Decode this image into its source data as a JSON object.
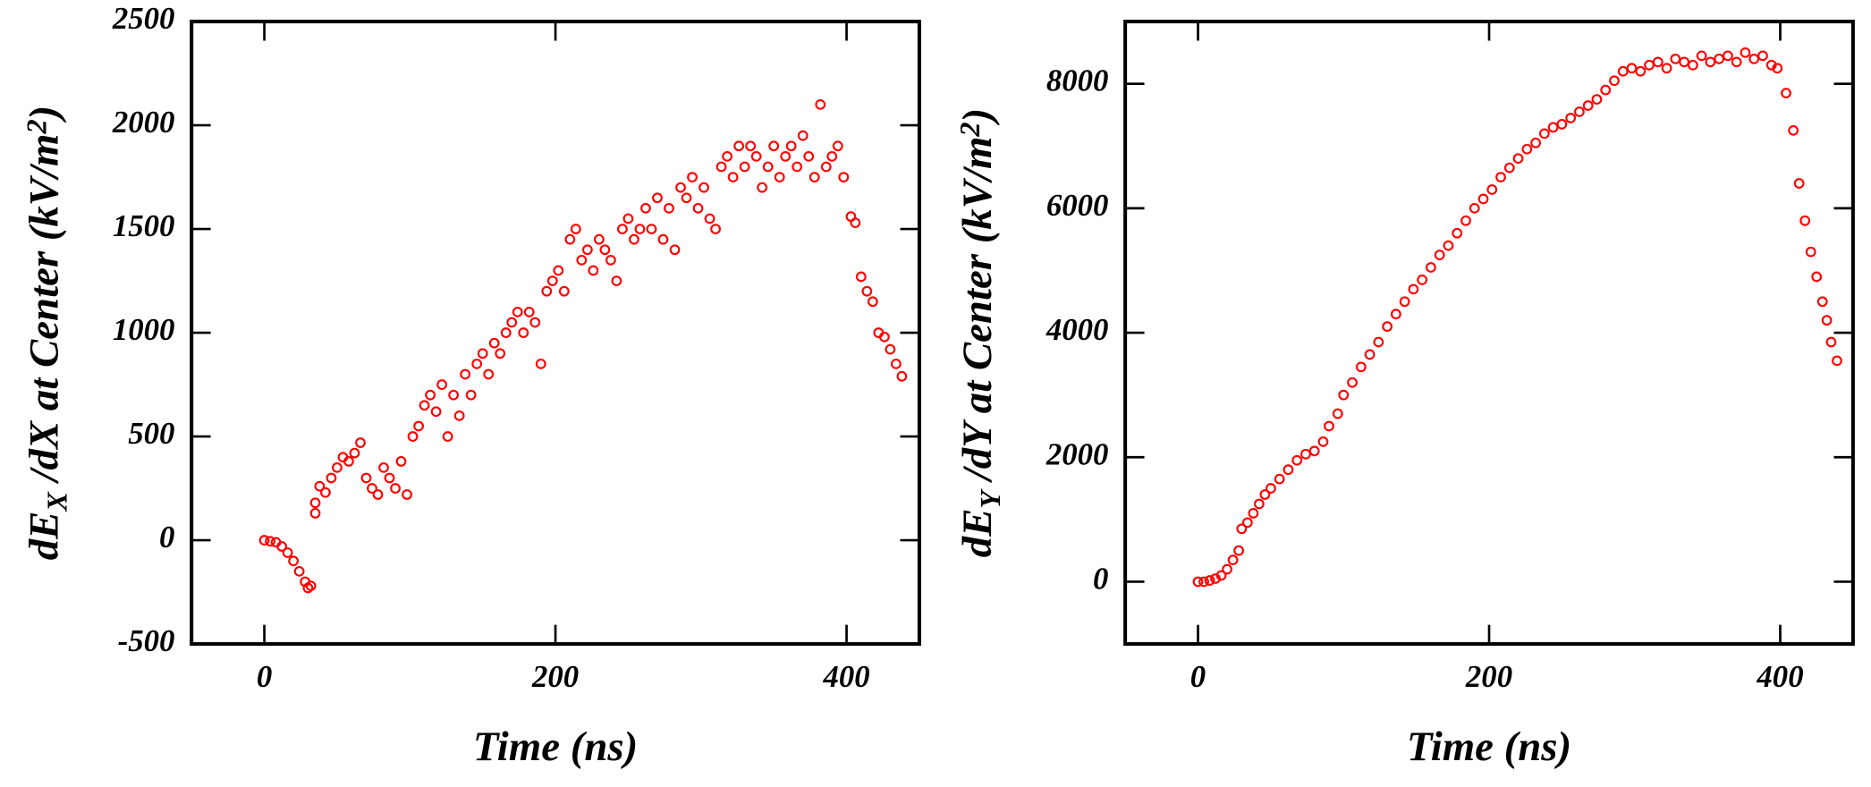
{
  "chart_data": [
    {
      "type": "scatter",
      "color": "#ff0000",
      "x_label": "Time (ns)",
      "y_label": [
        "dE",
        "X",
        " /dX at Center (kV/m",
        "2",
        ")"
      ],
      "xlim": [
        -50,
        450
      ],
      "xticks": [
        0,
        200,
        400
      ],
      "ylim": [
        -500,
        2500
      ],
      "yticks": [
        -500,
        0,
        500,
        1000,
        1500,
        2000,
        2500
      ],
      "x": [
        0,
        4,
        8,
        12,
        16,
        20,
        24,
        28,
        30,
        32,
        35,
        35,
        38,
        42,
        46,
        50,
        54,
        58,
        62,
        66,
        70,
        74,
        78,
        82,
        86,
        90,
        94,
        98,
        102,
        106,
        110,
        114,
        118,
        122,
        126,
        130,
        134,
        138,
        142,
        146,
        150,
        154,
        158,
        162,
        166,
        170,
        174,
        178,
        182,
        186,
        190,
        194,
        198,
        202,
        206,
        210,
        214,
        218,
        222,
        226,
        230,
        234,
        238,
        242,
        246,
        250,
        254,
        258,
        262,
        266,
        270,
        274,
        278,
        282,
        286,
        290,
        294,
        298,
        302,
        306,
        310,
        314,
        318,
        322,
        326,
        330,
        334,
        338,
        342,
        346,
        350,
        354,
        358,
        362,
        366,
        370,
        374,
        378,
        382,
        386,
        390,
        394,
        398,
        403,
        406,
        410,
        414,
        418,
        422,
        426,
        430,
        434,
        438
      ],
      "values": [
        0,
        -5,
        -10,
        -30,
        -60,
        -100,
        -150,
        -200,
        -230,
        -220,
        130,
        180,
        260,
        230,
        300,
        350,
        400,
        380,
        420,
        470,
        300,
        250,
        220,
        350,
        300,
        250,
        380,
        220,
        500,
        550,
        650,
        700,
        620,
        750,
        500,
        700,
        600,
        800,
        700,
        850,
        900,
        800,
        950,
        900,
        1000,
        1050,
        1100,
        1000,
        1100,
        1050,
        850,
        1200,
        1250,
        1300,
        1200,
        1450,
        1500,
        1350,
        1400,
        1300,
        1450,
        1400,
        1350,
        1250,
        1500,
        1550,
        1450,
        1500,
        1600,
        1500,
        1650,
        1450,
        1600,
        1400,
        1700,
        1650,
        1750,
        1600,
        1700,
        1550,
        1500,
        1800,
        1850,
        1750,
        1900,
        1800,
        1900,
        1850,
        1700,
        1800,
        1900,
        1750,
        1850,
        1900,
        1800,
        1950,
        1850,
        1750,
        2100,
        1800,
        1850,
        1900,
        1750,
        1560,
        1530,
        1270,
        1200,
        1150,
        1000,
        980,
        920,
        850,
        790
      ]
    },
    {
      "type": "scatter",
      "color": "#ff0000",
      "x_label": "Time (ns)",
      "y_label": [
        "dE",
        "Y",
        " /dY at Center (kV/m",
        "2",
        ")"
      ],
      "xlim": [
        -50,
        450
      ],
      "xticks": [
        0,
        200,
        400
      ],
      "ylim": [
        -1000,
        9000
      ],
      "yticks": [
        0,
        2000,
        4000,
        6000,
        8000
      ],
      "x": [
        0,
        4,
        8,
        12,
        16,
        20,
        24,
        28,
        30,
        34,
        38,
        42,
        46,
        50,
        56,
        62,
        68,
        74,
        80,
        86,
        90,
        96,
        100,
        106,
        112,
        118,
        124,
        130,
        136,
        142,
        148,
        154,
        160,
        166,
        172,
        178,
        184,
        190,
        196,
        202,
        208,
        214,
        220,
        226,
        232,
        238,
        244,
        250,
        256,
        262,
        268,
        274,
        280,
        286,
        292,
        298,
        304,
        310,
        316,
        322,
        328,
        334,
        340,
        346,
        352,
        358,
        364,
        370,
        376,
        382,
        388,
        394,
        398,
        404,
        409,
        413,
        417,
        421,
        425,
        429,
        432,
        435,
        439
      ],
      "values": [
        0,
        0,
        20,
        50,
        100,
        200,
        350,
        500,
        850,
        950,
        1100,
        1250,
        1400,
        1500,
        1650,
        1800,
        1950,
        2050,
        2100,
        2250,
        2500,
        2700,
        3000,
        3200,
        3450,
        3650,
        3850,
        4100,
        4300,
        4500,
        4700,
        4850,
        5050,
        5250,
        5400,
        5600,
        5800,
        6000,
        6150,
        6300,
        6500,
        6650,
        6800,
        6950,
        7050,
        7200,
        7300,
        7350,
        7450,
        7550,
        7650,
        7750,
        7900,
        8050,
        8200,
        8250,
        8200,
        8300,
        8350,
        8250,
        8400,
        8350,
        8300,
        8450,
        8350,
        8400,
        8450,
        8350,
        8500,
        8400,
        8450,
        8300,
        8250,
        7850,
        7250,
        6400,
        5800,
        5300,
        4900,
        4500,
        4200,
        3850,
        3550
      ]
    }
  ]
}
